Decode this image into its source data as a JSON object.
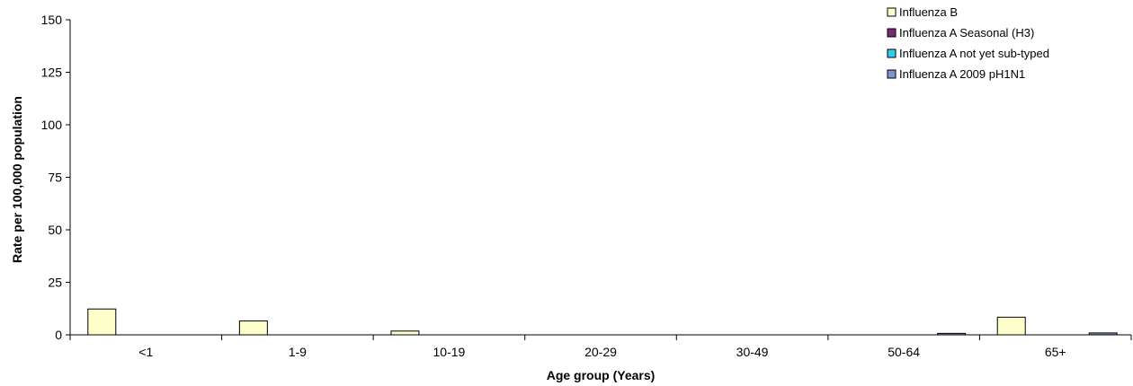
{
  "chart_data": {
    "type": "bar",
    "title": "",
    "xlabel": "Age group (Years)",
    "ylabel": "Rate per 100,000 population",
    "ylim": [
      0,
      150
    ],
    "yticks": [
      "0",
      "25",
      "50",
      "75",
      "100",
      "125",
      "150"
    ],
    "categories": [
      "<1",
      "1-9",
      "10-19",
      "20-29",
      "30-49",
      "50-64",
      "65+"
    ],
    "series": [
      {
        "name": "Influenza B",
        "color": "#FFFFCC",
        "values": [
          12.3,
          6.6,
          1.8,
          0,
          0,
          0,
          8.4
        ]
      },
      {
        "name": "Influenza A Seasonal (H3)",
        "color": "#7B2C6E",
        "values": [
          0,
          0,
          0,
          0,
          0,
          0,
          0
        ]
      },
      {
        "name": "Influenza A not yet sub-typed",
        "color": "#33CCEE",
        "values": [
          0,
          0,
          0,
          0,
          0,
          0,
          0
        ]
      },
      {
        "name": "Influenza A 2009 pH1N1",
        "color": "#7A96D0",
        "values": [
          0,
          0,
          0,
          0,
          0,
          0.7,
          0.9
        ]
      }
    ],
    "legend_position": "top-right",
    "grid": false
  }
}
